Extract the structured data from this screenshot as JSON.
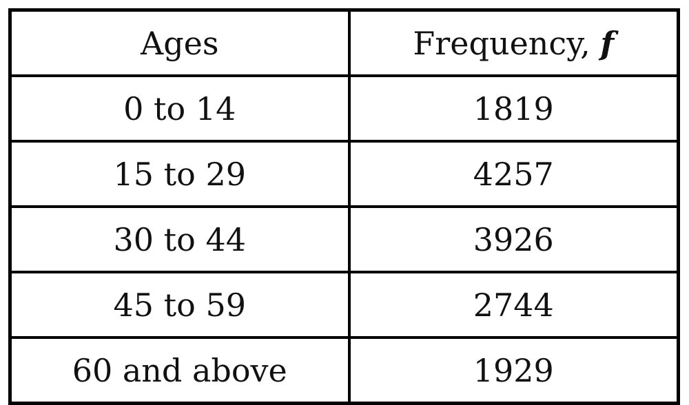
{
  "table": {
    "headers": {
      "col1": "Ages",
      "col2_text": "Frequency, ",
      "col2_var": "f"
    },
    "rows": [
      {
        "age": "0 to 14",
        "frequency": "1819"
      },
      {
        "age": "15 to 29",
        "frequency": "4257"
      },
      {
        "age": "30 to 44",
        "frequency": "3926"
      },
      {
        "age": "45 to 59",
        "frequency": "2744"
      },
      {
        "age": "60 and above",
        "frequency": "1929"
      }
    ]
  }
}
